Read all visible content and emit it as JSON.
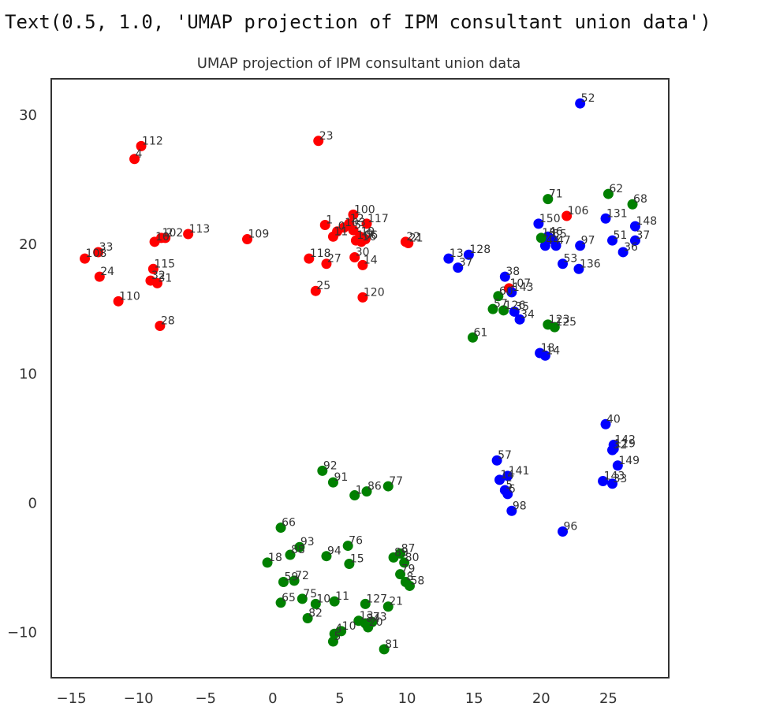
{
  "output_text": "Text(0.5, 1.0, 'UMAP projection of IPM consultant union data')",
  "colors": {
    "red": "#ff0000",
    "blue": "#0000ff",
    "green": "#008000",
    "axis": "#333333"
  },
  "chart_data": {
    "type": "scatter",
    "title": "UMAP projection of IPM consultant union data",
    "xlabel": "",
    "ylabel": "",
    "xlim": [
      -16.5,
      29.5
    ],
    "ylim": [
      -13.5,
      32.8
    ],
    "xticks": [
      -15,
      -10,
      -5,
      0,
      5,
      10,
      15,
      20,
      25
    ],
    "yticks": [
      -10,
      0,
      10,
      20,
      30
    ],
    "grid": false,
    "legend": "none",
    "series": [
      {
        "color": "red",
        "points": [
          {
            "x": -9.8,
            "y": 27.6,
            "label": "112"
          },
          {
            "x": -10.3,
            "y": 26.6,
            "label": "4"
          },
          {
            "x": -6.3,
            "y": 20.8,
            "label": "113"
          },
          {
            "x": -8.0,
            "y": 20.5,
            "label": "2"
          },
          {
            "x": -8.3,
            "y": 20.5,
            "label": "102"
          },
          {
            "x": -8.8,
            "y": 20.2,
            "label": "10"
          },
          {
            "x": -13.0,
            "y": 19.4,
            "label": "33"
          },
          {
            "x": -14.0,
            "y": 18.9,
            "label": "108"
          },
          {
            "x": -8.9,
            "y": 18.1,
            "label": "115"
          },
          {
            "x": -12.9,
            "y": 17.5,
            "label": "24"
          },
          {
            "x": -9.1,
            "y": 17.2,
            "label": "32"
          },
          {
            "x": -8.6,
            "y": 17.0,
            "label": "31"
          },
          {
            "x": -11.5,
            "y": 15.6,
            "label": "110"
          },
          {
            "x": -8.4,
            "y": 13.7,
            "label": "28"
          },
          {
            "x": 3.4,
            "y": 28.0,
            "label": "23"
          },
          {
            "x": -1.9,
            "y": 20.4,
            "label": "109"
          },
          {
            "x": 6.0,
            "y": 22.3,
            "label": "100"
          },
          {
            "x": 7.0,
            "y": 21.6,
            "label": "117"
          },
          {
            "x": 3.9,
            "y": 21.5,
            "label": "1"
          },
          {
            "x": 5.3,
            "y": 21.3,
            "label": "103"
          },
          {
            "x": 5.7,
            "y": 21.6,
            "label": "12"
          },
          {
            "x": 4.8,
            "y": 21.0,
            "label": "0"
          },
          {
            "x": 6.0,
            "y": 21.1,
            "label": "5"
          },
          {
            "x": 4.5,
            "y": 20.6,
            "label": "11"
          },
          {
            "x": 6.5,
            "y": 20.6,
            "label": "19"
          },
          {
            "x": 6.2,
            "y": 20.3,
            "label": "106"
          },
          {
            "x": 6.6,
            "y": 20.2,
            "label": "16"
          },
          {
            "x": 6.9,
            "y": 20.4,
            "label": "9"
          },
          {
            "x": 9.9,
            "y": 20.2,
            "label": "22"
          },
          {
            "x": 10.1,
            "y": 20.1,
            "label": "21"
          },
          {
            "x": 6.1,
            "y": 19.0,
            "label": "30"
          },
          {
            "x": 2.7,
            "y": 18.9,
            "label": "118"
          },
          {
            "x": 4.0,
            "y": 18.5,
            "label": "27"
          },
          {
            "x": 6.7,
            "y": 18.4,
            "label": "14"
          },
          {
            "x": 3.2,
            "y": 16.4,
            "label": "25"
          },
          {
            "x": 6.7,
            "y": 15.9,
            "label": "120"
          },
          {
            "x": 21.9,
            "y": 22.2,
            "label": "106"
          },
          {
            "x": 17.6,
            "y": 16.6,
            "label": "107"
          }
        ]
      },
      {
        "color": "blue",
        "points": [
          {
            "x": 22.9,
            "y": 30.9,
            "label": "52"
          },
          {
            "x": 24.8,
            "y": 22.0,
            "label": "131"
          },
          {
            "x": 19.8,
            "y": 21.6,
            "label": "150"
          },
          {
            "x": 27.0,
            "y": 21.4,
            "label": "148"
          },
          {
            "x": 20.5,
            "y": 20.6,
            "label": "46"
          },
          {
            "x": 20.8,
            "y": 20.4,
            "label": "55"
          },
          {
            "x": 25.3,
            "y": 20.3,
            "label": "51"
          },
          {
            "x": 27.0,
            "y": 20.3,
            "label": "37"
          },
          {
            "x": 20.3,
            "y": 19.9,
            "label": "44"
          },
          {
            "x": 21.1,
            "y": 19.9,
            "label": "47"
          },
          {
            "x": 22.9,
            "y": 19.9,
            "label": "97"
          },
          {
            "x": 26.1,
            "y": 19.4,
            "label": "36"
          },
          {
            "x": 21.6,
            "y": 18.5,
            "label": "53"
          },
          {
            "x": 22.8,
            "y": 18.1,
            "label": "136"
          },
          {
            "x": 14.6,
            "y": 19.2,
            "label": "128"
          },
          {
            "x": 13.1,
            "y": 18.9,
            "label": "13"
          },
          {
            "x": 13.8,
            "y": 18.2,
            "label": "37"
          },
          {
            "x": 17.3,
            "y": 17.5,
            "label": "38"
          },
          {
            "x": 17.8,
            "y": 16.3,
            "label": "143"
          },
          {
            "x": 18.0,
            "y": 14.8,
            "label": "35"
          },
          {
            "x": 18.4,
            "y": 14.2,
            "label": "34"
          },
          {
            "x": 19.9,
            "y": 11.6,
            "label": "18"
          },
          {
            "x": 20.3,
            "y": 11.4,
            "label": "14"
          },
          {
            "x": 24.8,
            "y": 6.1,
            "label": "40"
          },
          {
            "x": 25.4,
            "y": 4.5,
            "label": "142"
          },
          {
            "x": 25.4,
            "y": 4.2,
            "label": "119"
          },
          {
            "x": 25.3,
            "y": 4.1,
            "label": "32"
          },
          {
            "x": 25.7,
            "y": 2.9,
            "label": "149"
          },
          {
            "x": 24.6,
            "y": 1.7,
            "label": "143"
          },
          {
            "x": 25.3,
            "y": 1.5,
            "label": "33"
          },
          {
            "x": 16.7,
            "y": 3.3,
            "label": "57"
          },
          {
            "x": 17.5,
            "y": 2.1,
            "label": "141"
          },
          {
            "x": 16.9,
            "y": 1.8,
            "label": "14"
          },
          {
            "x": 17.3,
            "y": 1.0,
            "label": "5"
          },
          {
            "x": 17.5,
            "y": 0.7,
            "label": "6"
          },
          {
            "x": 17.8,
            "y": -0.6,
            "label": "98"
          },
          {
            "x": 21.6,
            "y": -2.2,
            "label": "96"
          }
        ]
      },
      {
        "color": "green",
        "points": [
          {
            "x": 20.5,
            "y": 23.5,
            "label": "71"
          },
          {
            "x": 25.0,
            "y": 23.9,
            "label": "62"
          },
          {
            "x": 26.8,
            "y": 23.1,
            "label": "68"
          },
          {
            "x": 20.0,
            "y": 20.5,
            "label": "15"
          },
          {
            "x": 16.8,
            "y": 16.0,
            "label": "60"
          },
          {
            "x": 16.4,
            "y": 15.0,
            "label": "57"
          },
          {
            "x": 17.2,
            "y": 14.9,
            "label": "126"
          },
          {
            "x": 20.5,
            "y": 13.8,
            "label": "123"
          },
          {
            "x": 21.0,
            "y": 13.6,
            "label": "125"
          },
          {
            "x": 14.9,
            "y": 12.8,
            "label": "61"
          },
          {
            "x": 3.7,
            "y": 2.5,
            "label": "92"
          },
          {
            "x": 4.5,
            "y": 1.6,
            "label": "91"
          },
          {
            "x": 8.6,
            "y": 1.3,
            "label": "77"
          },
          {
            "x": 7.0,
            "y": 0.9,
            "label": "86"
          },
          {
            "x": 6.1,
            "y": 0.6,
            "label": "1"
          },
          {
            "x": 0.6,
            "y": -1.9,
            "label": "66"
          },
          {
            "x": 2.0,
            "y": -3.4,
            "label": "93"
          },
          {
            "x": 5.6,
            "y": -3.3,
            "label": "76"
          },
          {
            "x": 1.3,
            "y": -4.0,
            "label": "88"
          },
          {
            "x": 4.0,
            "y": -4.1,
            "label": "94"
          },
          {
            "x": 9.5,
            "y": -3.9,
            "label": "87"
          },
          {
            "x": 9.0,
            "y": -4.2,
            "label": "89"
          },
          {
            "x": -0.4,
            "y": -4.6,
            "label": "18"
          },
          {
            "x": 5.7,
            "y": -4.7,
            "label": "15"
          },
          {
            "x": 9.8,
            "y": -4.6,
            "label": "80"
          },
          {
            "x": 9.5,
            "y": -5.5,
            "label": "79"
          },
          {
            "x": 0.8,
            "y": -6.1,
            "label": "59"
          },
          {
            "x": 1.6,
            "y": -6.0,
            "label": "72"
          },
          {
            "x": 9.9,
            "y": -6.1,
            "label": "8"
          },
          {
            "x": 10.2,
            "y": -6.4,
            "label": "58"
          },
          {
            "x": 2.2,
            "y": -7.4,
            "label": "75"
          },
          {
            "x": 3.2,
            "y": -7.8,
            "label": "10"
          },
          {
            "x": 4.6,
            "y": -7.6,
            "label": "11"
          },
          {
            "x": 0.6,
            "y": -7.7,
            "label": "65"
          },
          {
            "x": 6.9,
            "y": -7.8,
            "label": "127"
          },
          {
            "x": 8.6,
            "y": -8.0,
            "label": "21"
          },
          {
            "x": 2.6,
            "y": -8.9,
            "label": "82"
          },
          {
            "x": 6.4,
            "y": -9.1,
            "label": "13"
          },
          {
            "x": 6.9,
            "y": -9.3,
            "label": "84"
          },
          {
            "x": 7.4,
            "y": -9.2,
            "label": "73"
          },
          {
            "x": 7.1,
            "y": -9.6,
            "label": "20"
          },
          {
            "x": 5.1,
            "y": -9.9,
            "label": "10"
          },
          {
            "x": 4.6,
            "y": -10.1,
            "label": "4"
          },
          {
            "x": 4.5,
            "y": -10.7,
            "label": "5"
          },
          {
            "x": 8.3,
            "y": -11.3,
            "label": "81"
          }
        ]
      }
    ]
  }
}
